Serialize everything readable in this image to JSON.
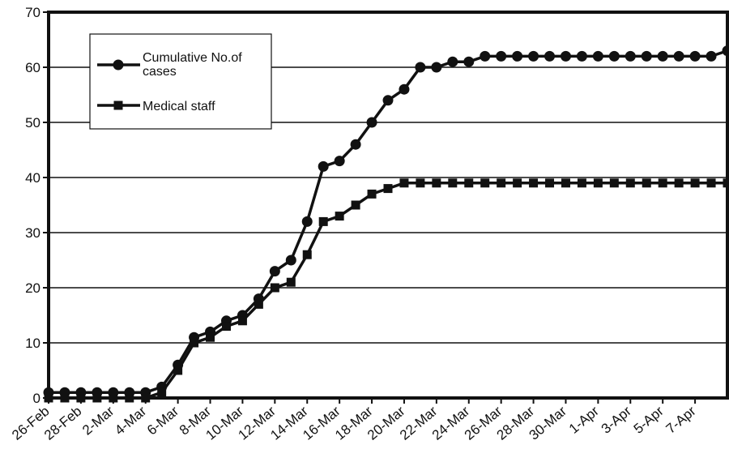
{
  "chart_data": {
    "type": "line",
    "title": "",
    "xlabel": "",
    "ylabel": "",
    "ylim": [
      0,
      70
    ],
    "yticks": [
      0,
      10,
      20,
      30,
      40,
      50,
      60,
      70
    ],
    "grid": true,
    "legend_position": "top-left",
    "x": [
      "26-Feb",
      "27-Feb",
      "28-Feb",
      "29-Feb",
      "1-Mar",
      "2-Mar",
      "3-Mar",
      "4-Mar",
      "5-Mar",
      "6-Mar",
      "7-Mar",
      "8-Mar",
      "9-Mar",
      "10-Mar",
      "11-Mar",
      "12-Mar",
      "13-Mar",
      "14-Mar",
      "15-Mar",
      "16-Mar",
      "17-Mar",
      "18-Mar",
      "19-Mar",
      "20-Mar",
      "21-Mar",
      "22-Mar",
      "23-Mar",
      "24-Mar",
      "25-Mar",
      "26-Mar",
      "27-Mar",
      "28-Mar",
      "29-Mar",
      "30-Mar",
      "31-Mar",
      "1-Apr",
      "2-Apr",
      "3-Apr",
      "4-Apr",
      "5-Apr",
      "6-Apr",
      "7-Apr",
      "8-Apr"
    ],
    "tick_labels": [
      "26-Feb",
      "28-Feb",
      "2-Mar",
      "4-Mar",
      "6-Mar",
      "8-Mar",
      "10-Mar",
      "12-Mar",
      "14-Mar",
      "16-Mar",
      "18-Mar",
      "20-Mar",
      "22-Mar",
      "24-Mar",
      "26-Mar",
      "28-Mar",
      "30-Mar",
      "1-Apr",
      "3-Apr",
      "5-Apr",
      "7-Apr"
    ],
    "series": [
      {
        "name": "Cumulative No.of cases",
        "marker": "circle",
        "color": "#111111",
        "values": [
          1,
          1,
          1,
          1,
          1,
          1,
          1,
          2,
          6,
          11,
          12,
          14,
          15,
          18,
          23,
          25,
          32,
          42,
          43,
          46,
          50,
          54,
          56,
          60,
          60,
          61,
          61,
          62,
          62,
          62,
          62,
          62,
          62,
          62,
          62,
          62,
          62,
          62,
          62,
          62,
          62,
          62,
          63
        ]
      },
      {
        "name": "Medical staff",
        "marker": "square",
        "color": "#111111",
        "values": [
          0,
          0,
          0,
          0,
          0,
          0,
          0,
          1,
          5,
          10,
          11,
          13,
          14,
          17,
          20,
          21,
          26,
          32,
          33,
          35,
          37,
          38,
          39,
          39,
          39,
          39,
          39,
          39,
          39,
          39,
          39,
          39,
          39,
          39,
          39,
          39,
          39,
          39,
          39,
          39,
          39,
          39,
          39
        ]
      }
    ]
  }
}
